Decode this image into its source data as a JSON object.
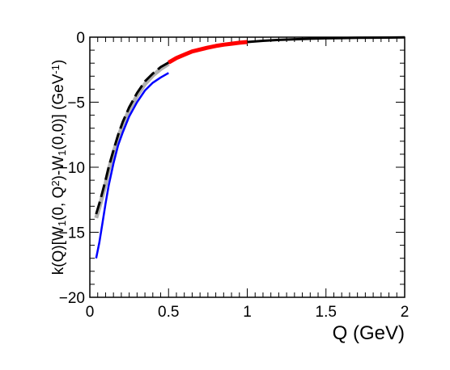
{
  "chart_data": {
    "type": "line",
    "title": "",
    "xlabel": "Q (GeV)",
    "ylabel": {
      "parts": [
        {
          "t": "k(Q)[W",
          "s": "n"
        },
        {
          "t": "1",
          "s": "sub"
        },
        {
          "t": "(0, Q",
          "s": "n"
        },
        {
          "t": "2",
          "s": "sup"
        },
        {
          "t": ")-W",
          "s": "n"
        },
        {
          "t": "1",
          "s": "sub"
        },
        {
          "t": "(0,0)] (GeV",
          "s": "n"
        },
        {
          "t": "-1",
          "s": "sup"
        },
        {
          "t": ")",
          "s": "n"
        }
      ]
    },
    "xlim": [
      0,
      2
    ],
    "ylim": [
      -20,
      0
    ],
    "xticks": [
      {
        "v": 0,
        "label": "0"
      },
      {
        "v": 0.5,
        "label": "0.5"
      },
      {
        "v": 1,
        "label": "1"
      },
      {
        "v": 1.5,
        "label": "1.5"
      },
      {
        "v": 2,
        "label": "2"
      }
    ],
    "yticks": [
      {
        "v": -20,
        "label": "−20"
      },
      {
        "v": -15,
        "label": "−15"
      },
      {
        "v": -10,
        "label": "−10"
      },
      {
        "v": -5,
        "label": "−5"
      },
      {
        "v": 0,
        "label": "0"
      }
    ],
    "grid": false,
    "legend": "none",
    "series": [
      {
        "color": "#b0b0b0",
        "style": "solid",
        "width": 5,
        "x": [
          0.04,
          0.06,
          0.08,
          0.1,
          0.12,
          0.15,
          0.18,
          0.21,
          0.25,
          0.3,
          0.35,
          0.4,
          0.45,
          0.5
        ],
        "y": [
          -13.9,
          -13.1,
          -12.2,
          -11.3,
          -10.2,
          -8.9,
          -7.7,
          -6.7,
          -5.6,
          -4.5,
          -3.6,
          -2.95,
          -2.45,
          -2.05
        ]
      },
      {
        "color": "#0000ff",
        "style": "solid",
        "width": 2.5,
        "x": [
          0.04,
          0.06,
          0.08,
          0.1,
          0.12,
          0.15,
          0.18,
          0.21,
          0.25,
          0.3,
          0.35,
          0.4,
          0.45,
          0.5
        ],
        "y": [
          -17.0,
          -15.8,
          -14.3,
          -12.8,
          -11.4,
          -9.7,
          -8.3,
          -7.3,
          -6.1,
          -5.0,
          -4.1,
          -3.5,
          -3.1,
          -2.75
        ]
      },
      {
        "color": "#000000",
        "style": "dashed",
        "width": 3,
        "x": [
          0.04,
          0.06,
          0.08,
          0.1,
          0.12,
          0.15,
          0.18,
          0.21,
          0.25,
          0.3,
          0.35,
          0.4,
          0.45,
          0.5
        ],
        "y": [
          -13.6,
          -12.8,
          -11.9,
          -11.0,
          -10.0,
          -8.7,
          -7.5,
          -6.5,
          -5.4,
          -4.3,
          -3.4,
          -2.8,
          -2.3,
          -1.95
        ]
      },
      {
        "color": "#ff0000",
        "style": "solid",
        "width": 5,
        "x": [
          0.5,
          0.55,
          0.6,
          0.65,
          0.7,
          0.75,
          0.8,
          0.85,
          0.9,
          0.95,
          1.0
        ],
        "y": [
          -1.95,
          -1.6,
          -1.35,
          -1.1,
          -0.95,
          -0.8,
          -0.68,
          -0.58,
          -0.5,
          -0.43,
          -0.37
        ]
      },
      {
        "color": "#000000",
        "style": "solid",
        "width": 3,
        "x": [
          1.0,
          1.1,
          1.2,
          1.3,
          1.4,
          1.5,
          1.6,
          1.7,
          1.8,
          1.9,
          2.0
        ],
        "y": [
          -0.37,
          -0.28,
          -0.21,
          -0.16,
          -0.12,
          -0.09,
          -0.07,
          -0.05,
          -0.04,
          -0.03,
          -0.02
        ]
      }
    ]
  }
}
